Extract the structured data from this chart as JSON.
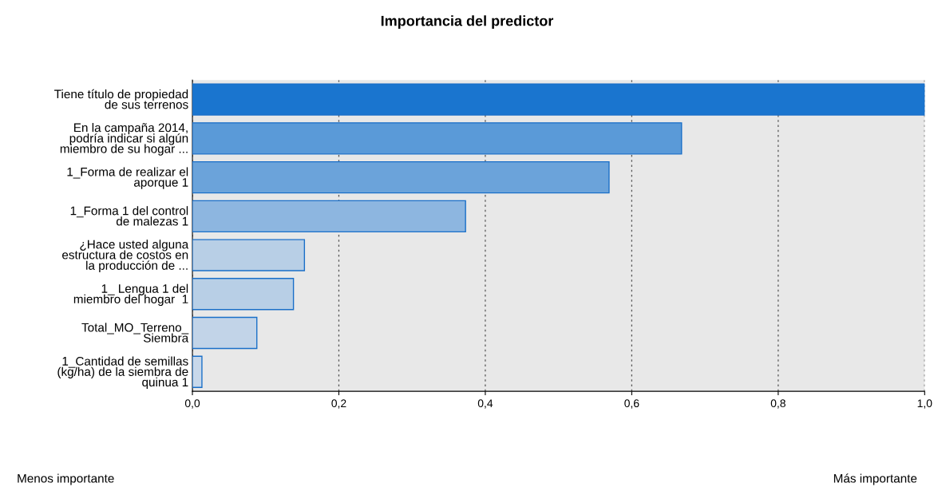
{
  "chart_data": {
    "type": "bar",
    "orientation": "horizontal",
    "title": "Importancia del predictor",
    "categories": [
      "Tiene título de propiedad\nde sus terrenos",
      "En la campaña 2014,\npodría indicar si algún\nmiembro de su hogar ...",
      "1_Forma de realizar el\naporque 1",
      "1_Forma 1 del control\nde malezas 1",
      "¿Hace usted alguna\nestructura de costos en\nla producción de ...",
      "1_ Lengua 1 del\nmiembro del hogar  1",
      "Total_MO_Terreno_\nSiembra",
      "1_Cantidad de semillas\n(kg/ha) de la siembra de\nquinua 1"
    ],
    "values": [
      1.0,
      0.668,
      0.569,
      0.373,
      0.153,
      0.138,
      0.088,
      0.013
    ],
    "colors": [
      "#1a75cf",
      "#5a9ad8",
      "#6ba3da",
      "#8db6e0",
      "#b8cfe6",
      "#b8cfe6",
      "#c2d4e8",
      "#c8d8ea"
    ],
    "xlim": [
      0,
      1
    ],
    "xticks": [
      {
        "value": 0,
        "label": "0,0"
      },
      {
        "value": 0.2,
        "label": "0,2"
      },
      {
        "value": 0.4,
        "label": "0,4"
      },
      {
        "value": 0.6,
        "label": "0,6"
      },
      {
        "value": 0.8,
        "label": "0,8"
      },
      {
        "value": 1.0,
        "label": "1,0"
      }
    ],
    "grid": "x",
    "annotations": [
      "Menos importante",
      "Más importante"
    ]
  }
}
